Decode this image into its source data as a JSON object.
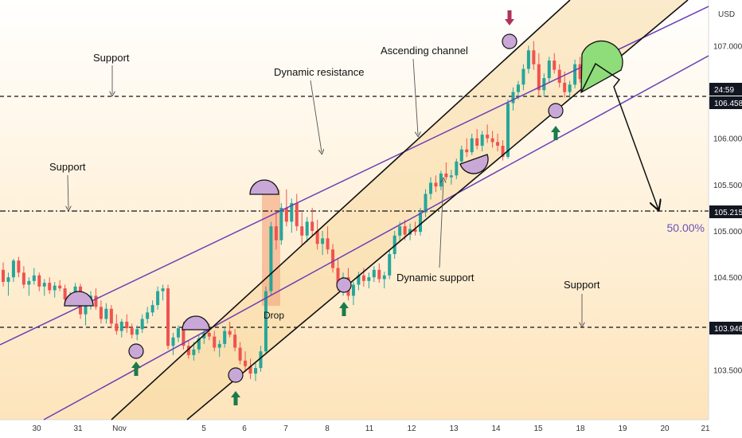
{
  "chart_data": {
    "type": "candlestick",
    "currency_label": "USD",
    "colors": {
      "up": "#26a69a",
      "down": "#ef5350",
      "channel_fill": "#f7d9a0",
      "purple_line": "#6a3fb5",
      "black_line": "#111111",
      "circle_fill": "#c9a8d8",
      "arrow_green": "#1b7a4a",
      "arrow_red": "#b0325a",
      "drop_box": "#f4a37a",
      "target_green": "#8fdc7a",
      "fib_text": "#6a52b8"
    },
    "price_axis": {
      "ticks": [
        "107.000",
        "106.000",
        "105.500",
        "105.000",
        "104.500",
        "103.500"
      ]
    },
    "time_axis": {
      "ticks": [
        "30",
        "31",
        "Nov",
        "5",
        "6",
        "7",
        "8",
        "11",
        "12",
        "13",
        "14",
        "15",
        "18",
        "19",
        "20",
        "21"
      ]
    },
    "price_tags": [
      {
        "label": "24:59",
        "dark": true
      },
      {
        "label": "106.458",
        "dark": true
      },
      {
        "label": "105.215",
        "dark": true
      },
      {
        "label": "103.946",
        "dark": true
      }
    ],
    "horizontal_levels": [
      {
        "price": 106.458,
        "style": "dashed"
      },
      {
        "price": 105.215,
        "style": "dashdot"
      },
      {
        "price": 103.946,
        "style": "dashed"
      }
    ],
    "annotations": {
      "support_top": "Support",
      "support_mid": "Support",
      "support_bottom": "Support",
      "dynamic_resistance": "Dynamic resistance",
      "ascending_channel": "Ascending channel",
      "dynamic_support": "Dynamic support",
      "drop": "Drop",
      "fib_level": "50.00%"
    },
    "candles": [
      [
        104.58,
        104.66,
        104.4,
        104.45
      ],
      [
        104.45,
        104.55,
        104.3,
        104.5
      ],
      [
        104.5,
        104.7,
        104.45,
        104.68
      ],
      [
        104.68,
        104.72,
        104.5,
        104.55
      ],
      [
        104.55,
        104.62,
        104.38,
        104.42
      ],
      [
        104.42,
        104.5,
        104.3,
        104.46
      ],
      [
        104.46,
        104.6,
        104.42,
        104.52
      ],
      [
        104.52,
        104.55,
        104.35,
        104.4
      ],
      [
        104.4,
        104.48,
        104.3,
        104.44
      ],
      [
        104.44,
        104.5,
        104.32,
        104.36
      ],
      [
        104.36,
        104.45,
        104.28,
        104.41
      ],
      [
        104.41,
        104.47,
        104.35,
        104.38
      ],
      [
        104.38,
        104.42,
        104.22,
        104.26
      ],
      [
        104.26,
        104.34,
        104.18,
        104.3
      ],
      [
        104.3,
        104.44,
        104.25,
        104.4
      ],
      [
        104.4,
        104.43,
        104.05,
        104.1
      ],
      [
        104.1,
        104.25,
        103.98,
        104.2
      ],
      [
        104.2,
        104.35,
        104.15,
        104.3
      ],
      [
        104.3,
        104.38,
        104.15,
        104.18
      ],
      [
        104.18,
        104.25,
        104.0,
        104.05
      ],
      [
        104.05,
        104.22,
        104.0,
        104.16
      ],
      [
        104.16,
        104.2,
        103.95,
        104.0
      ],
      [
        104.0,
        104.1,
        103.88,
        103.92
      ],
      [
        103.92,
        104.05,
        103.85,
        104.02
      ],
      [
        104.02,
        104.1,
        103.9,
        103.95
      ],
      [
        103.95,
        104.0,
        103.84,
        103.88
      ],
      [
        103.88,
        103.98,
        103.82,
        103.94
      ],
      [
        103.94,
        104.1,
        103.9,
        104.05
      ],
      [
        104.05,
        104.18,
        104.0,
        104.12
      ],
      [
        104.12,
        104.25,
        104.08,
        104.2
      ],
      [
        104.2,
        104.4,
        104.15,
        104.35
      ],
      [
        104.35,
        104.42,
        104.25,
        104.38
      ],
      [
        104.38,
        104.42,
        103.72,
        103.76
      ],
      [
        103.76,
        103.9,
        103.66,
        103.85
      ],
      [
        103.85,
        103.98,
        103.8,
        103.95
      ],
      [
        103.95,
        104.02,
        103.72,
        103.76
      ],
      [
        103.76,
        103.82,
        103.62,
        103.66
      ],
      [
        103.66,
        103.8,
        103.6,
        103.72
      ],
      [
        103.72,
        103.88,
        103.68,
        103.84
      ],
      [
        103.84,
        103.95,
        103.78,
        103.9
      ],
      [
        103.9,
        104.0,
        103.82,
        103.86
      ],
      [
        103.86,
        103.92,
        103.7,
        103.74
      ],
      [
        103.74,
        103.82,
        103.64,
        103.78
      ],
      [
        103.78,
        103.96,
        103.74,
        103.92
      ],
      [
        103.92,
        104.02,
        103.85,
        103.88
      ],
      [
        103.88,
        103.94,
        103.7,
        103.74
      ],
      [
        103.74,
        103.8,
        103.56,
        103.6
      ],
      [
        103.6,
        103.7,
        103.48,
        103.54
      ],
      [
        103.54,
        103.62,
        103.4,
        103.46
      ],
      [
        103.46,
        103.58,
        103.38,
        103.52
      ],
      [
        103.52,
        103.76,
        103.48,
        103.7
      ],
      [
        103.7,
        104.4,
        103.68,
        104.35
      ],
      [
        104.35,
        105.1,
        104.3,
        105.05
      ],
      [
        105.05,
        105.2,
        104.8,
        104.9
      ],
      [
        104.9,
        105.3,
        104.85,
        105.25
      ],
      [
        105.25,
        105.45,
        105.05,
        105.1
      ],
      [
        105.1,
        105.35,
        104.98,
        105.3
      ],
      [
        105.3,
        105.4,
        105.0,
        105.05
      ],
      [
        105.05,
        105.2,
        104.85,
        104.95
      ],
      [
        104.95,
        105.15,
        104.88,
        105.1
      ],
      [
        105.1,
        105.25,
        104.95,
        105.0
      ],
      [
        105.0,
        105.12,
        104.8,
        104.86
      ],
      [
        104.86,
        105.0,
        104.74,
        104.92
      ],
      [
        104.92,
        105.05,
        104.75,
        104.8
      ],
      [
        104.8,
        104.86,
        104.55,
        104.6
      ],
      [
        104.6,
        104.7,
        104.35,
        104.4
      ],
      [
        104.4,
        104.55,
        104.3,
        104.5
      ],
      [
        104.5,
        104.6,
        104.25,
        104.3
      ],
      [
        104.3,
        104.45,
        104.2,
        104.42
      ],
      [
        104.42,
        104.56,
        104.36,
        104.52
      ],
      [
        104.52,
        104.6,
        104.4,
        104.46
      ],
      [
        104.46,
        104.55,
        104.38,
        104.5
      ],
      [
        104.5,
        104.62,
        104.45,
        104.58
      ],
      [
        104.58,
        104.65,
        104.44,
        104.48
      ],
      [
        104.48,
        104.56,
        104.38,
        104.52
      ],
      [
        104.52,
        104.8,
        104.48,
        104.75
      ],
      [
        104.75,
        105.0,
        104.7,
        104.95
      ],
      [
        104.95,
        105.1,
        104.88,
        105.05
      ],
      [
        105.05,
        105.12,
        104.9,
        104.96
      ],
      [
        104.96,
        105.08,
        104.9,
        105.02
      ],
      [
        105.02,
        105.1,
        104.95,
        104.99
      ],
      [
        104.99,
        105.25,
        104.95,
        105.2
      ],
      [
        105.2,
        105.45,
        105.15,
        105.4
      ],
      [
        105.4,
        105.58,
        105.34,
        105.52
      ],
      [
        105.52,
        105.6,
        105.42,
        105.48
      ],
      [
        105.48,
        105.65,
        105.44,
        105.62
      ],
      [
        105.62,
        105.74,
        105.55,
        105.58
      ],
      [
        105.58,
        105.66,
        105.5,
        105.6
      ],
      [
        105.6,
        105.78,
        105.56,
        105.75
      ],
      [
        105.75,
        105.92,
        105.7,
        105.88
      ],
      [
        105.88,
        106.0,
        105.8,
        105.85
      ],
      [
        105.85,
        106.05,
        105.82,
        106.0
      ],
      [
        106.0,
        106.1,
        105.88,
        105.92
      ],
      [
        105.92,
        106.08,
        105.86,
        106.04
      ],
      [
        106.04,
        106.15,
        105.95,
        106.0
      ],
      [
        106.0,
        106.08,
        105.9,
        105.96
      ],
      [
        105.96,
        106.05,
        105.86,
        105.92
      ],
      [
        105.92,
        105.98,
        105.76,
        105.8
      ],
      [
        105.8,
        106.42,
        105.78,
        106.38
      ],
      [
        106.38,
        106.55,
        106.3,
        106.5
      ],
      [
        106.5,
        106.62,
        106.42,
        106.58
      ],
      [
        106.58,
        106.8,
        106.52,
        106.75
      ],
      [
        106.75,
        107.0,
        106.7,
        106.95
      ],
      [
        106.95,
        107.05,
        106.74,
        106.8
      ],
      [
        106.8,
        106.92,
        106.46,
        106.52
      ],
      [
        106.52,
        106.7,
        106.45,
        106.65
      ],
      [
        106.65,
        106.88,
        106.6,
        106.84
      ],
      [
        106.84,
        106.92,
        106.7,
        106.74
      ],
      [
        106.74,
        106.8,
        106.55,
        106.6
      ],
      [
        106.6,
        106.72,
        106.44,
        106.5
      ],
      [
        106.5,
        106.62,
        106.42,
        106.58
      ],
      [
        106.58,
        106.85,
        106.54,
        106.8
      ],
      [
        106.8,
        106.88,
        106.6,
        106.64
      ],
      [
        106.64,
        106.78,
        106.58,
        106.74
      ],
      [
        106.74,
        106.8,
        106.62,
        106.66
      ],
      [
        106.66,
        106.76,
        106.6,
        106.7
      ]
    ]
  }
}
